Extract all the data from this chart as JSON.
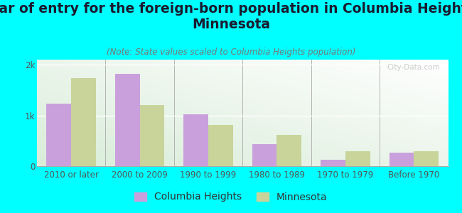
{
  "title": "Year of entry for the foreign-born population in Columbia Heights,\nMinnesota",
  "subtitle": "(Note: State values scaled to Columbia Heights population)",
  "categories": [
    "2010 or later",
    "2000 to 2009",
    "1990 to 1999",
    "1980 to 1989",
    "1970 to 1979",
    "Before 1970"
  ],
  "columbia_heights": [
    1230,
    1820,
    1020,
    430,
    120,
    265
  ],
  "minnesota": [
    1730,
    1210,
    810,
    620,
    290,
    300
  ],
  "columbia_color": "#c9a0dc",
  "minnesota_color": "#c8d49a",
  "background_color": "#00ffff",
  "yticks": [
    0,
    1000,
    2000
  ],
  "ylabels": [
    "0",
    "1k",
    "2k"
  ],
  "ylim": [
    0,
    2100
  ],
  "bar_width": 0.36,
  "title_fontsize": 13.5,
  "subtitle_fontsize": 8.5,
  "axis_label_fontsize": 8.5,
  "legend_fontsize": 10,
  "title_color": "#1a1a2e",
  "subtitle_color": "#777777",
  "tick_color": "#555555",
  "watermark": "City-Data.com"
}
